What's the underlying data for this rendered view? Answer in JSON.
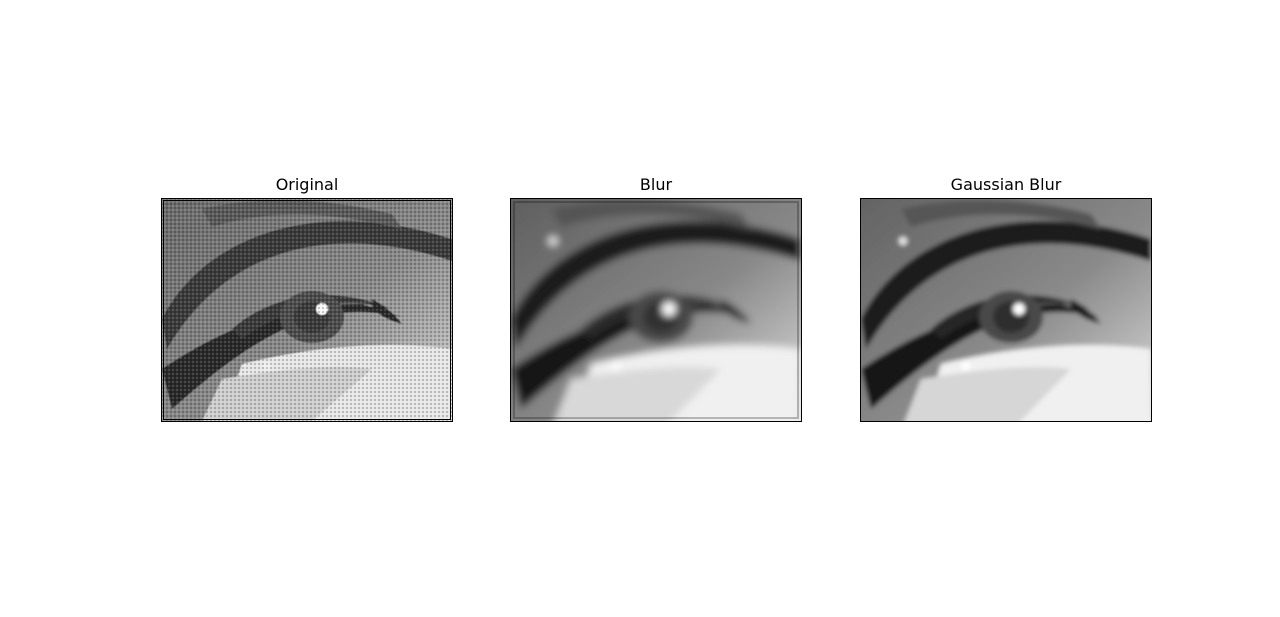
{
  "figure": {
    "panels": [
      {
        "title": "Original",
        "variant": "original"
      },
      {
        "title": "Blur",
        "variant": "blur"
      },
      {
        "title": "Gaussian Blur",
        "variant": "gaussian"
      }
    ]
  },
  "colors": {
    "background": "#ffffff",
    "frame": "#000000",
    "image_dark": "#1a1a1a",
    "image_light": "#f0f0f0"
  }
}
